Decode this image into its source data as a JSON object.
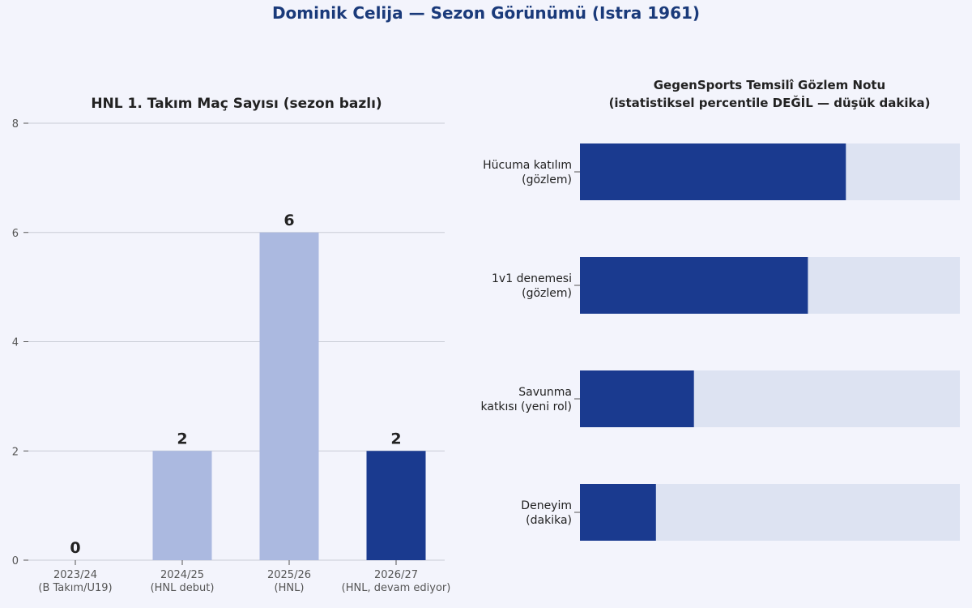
{
  "title": "Dominik Celija — Sezon Görünümü (Istra 1961)",
  "colors": {
    "accent": "#1a3a8f",
    "bar_light": "#abb9e0",
    "track": "#dde3f2",
    "text": "#222222",
    "tick": "#555555"
  },
  "chart_data": [
    {
      "type": "bar",
      "title": "HNL 1. Takım Maç Sayısı (sezon bazlı)",
      "categories": [
        [
          "2023/24",
          "(B Takım/U19)"
        ],
        [
          "2024/25",
          "(HNL debut)"
        ],
        [
          "2025/26",
          "(HNL)"
        ],
        [
          "2026/27",
          "(HNL, devam ediyor)"
        ]
      ],
      "values": [
        0,
        2,
        6,
        2
      ],
      "highlight_index": 3,
      "ylim": [
        0,
        8
      ],
      "yticks": [
        0,
        2,
        4,
        6,
        8
      ],
      "grid": true
    },
    {
      "type": "bar",
      "orientation": "horizontal",
      "title": [
        "GegenSports Temsilî Gözlem Notu",
        "(istatistiksel percentile DEĞİL — düşük dakika)"
      ],
      "categories": [
        [
          "Hücuma katılım",
          "(gözlem)"
        ],
        [
          "1v1 denemesi",
          "(gözlem)"
        ],
        [
          "Savunma",
          "katkısı (yeni rol)"
        ],
        [
          "Deneyim",
          "(dakika)"
        ]
      ],
      "values": [
        0.7,
        0.6,
        0.3,
        0.2
      ],
      "xlim": [
        0,
        1
      ]
    }
  ]
}
